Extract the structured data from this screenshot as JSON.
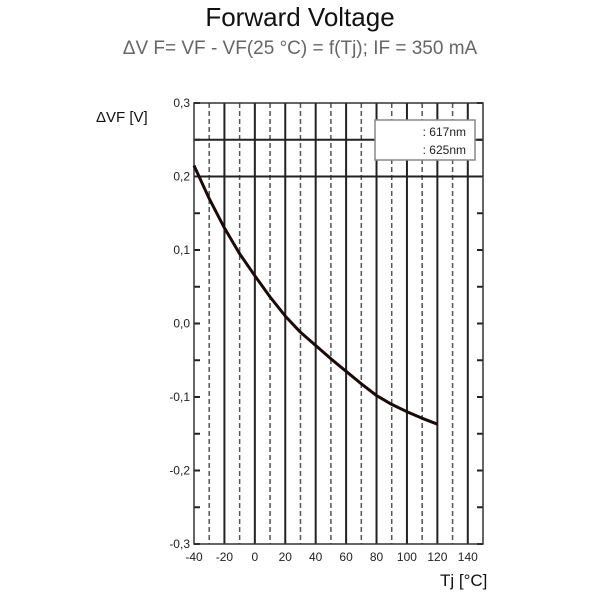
{
  "chart_data": {
    "type": "line",
    "title": "Forward Voltage",
    "subtitle": "ΔV F= VF - VF(25 °C) = f(Tj); IF = 350 mA",
    "xlabel": "Tj [°C]",
    "ylabel": "ΔVF [V]",
    "xlim": [
      -40,
      150
    ],
    "ylim": [
      -0.3,
      0.3
    ],
    "xticks": [
      "-40",
      "-20",
      "0",
      "20",
      "40",
      "60",
      "80",
      "100",
      "120",
      "140"
    ],
    "yticks": [
      "0,3",
      "0,2",
      "0,1",
      "0,0",
      "-0,1",
      "-0,2",
      "-0,3"
    ],
    "grid": true,
    "legend_position": "top-right",
    "legend": [
      ": 617nm",
      ": 625nm"
    ],
    "series": [
      {
        "x": [
          -40,
          -30,
          -20,
          -10,
          0,
          10,
          20,
          30,
          40,
          50,
          60,
          70,
          80,
          90,
          100,
          110,
          120
        ],
        "y": [
          0.215,
          0.17,
          0.13,
          0.095,
          0.065,
          0.036,
          0.01,
          -0.012,
          -0.03,
          -0.048,
          -0.065,
          -0.082,
          -0.098,
          -0.11,
          -0.12,
          -0.129,
          -0.137
        ],
        "color": "#1a0a0a"
      }
    ]
  }
}
